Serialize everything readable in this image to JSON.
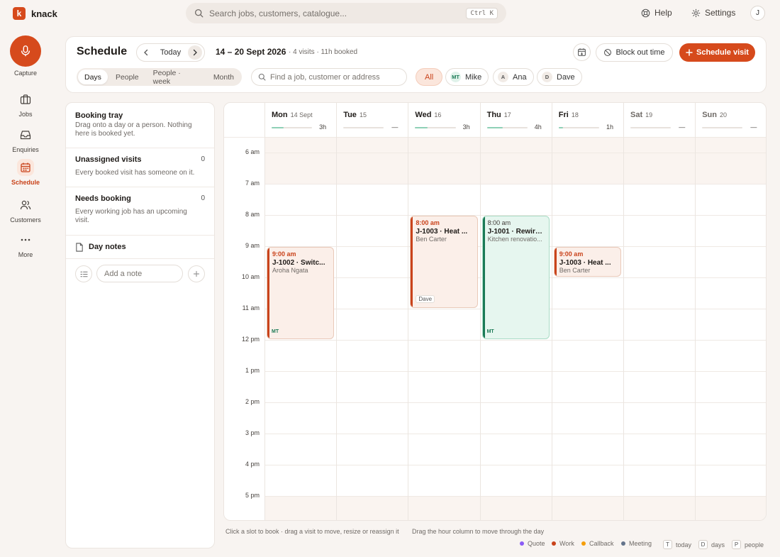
{
  "app": {
    "logo_letter": "k",
    "name": "knack"
  },
  "topbar": {
    "search_placeholder": "Search jobs, customers, catalogue...",
    "shortcut": "Ctrl K",
    "help": "Help",
    "settings": "Settings",
    "avatar": "J"
  },
  "sidebar": {
    "capture": "Capture",
    "items": [
      {
        "label": "Jobs",
        "icon": "briefcase-icon"
      },
      {
        "label": "Enquiries",
        "icon": "inbox-icon"
      },
      {
        "label": "Schedule",
        "icon": "calendar-icon",
        "active": true
      },
      {
        "label": "Customers",
        "icon": "users-icon"
      },
      {
        "label": "More",
        "icon": "dots-icon"
      }
    ]
  },
  "header": {
    "title": "Schedule",
    "today": "Today",
    "range": "14 – 20 Sept 2026",
    "meta": "· 4 visits · 11h booked",
    "block_out": "Block out time",
    "schedule_visit": "Schedule visit"
  },
  "views": [
    "Days",
    "People",
    "People · week",
    "Month"
  ],
  "find_placeholder": "Find a job, customer or address",
  "filters": {
    "all": "All",
    "people": [
      {
        "initials": "MT",
        "name": "Mike"
      },
      {
        "initials": "A",
        "name": "Ana"
      },
      {
        "initials": "D",
        "name": "Dave"
      }
    ]
  },
  "tray": {
    "booking_title": "Booking tray",
    "booking_desc": "Drag onto a day or a person. Nothing here is booked yet.",
    "unassigned_title": "Unassigned visits",
    "unassigned_count": "0",
    "unassigned_desc": "Every booked visit has someone on it.",
    "needs_title": "Needs booking",
    "needs_count": "0",
    "needs_desc": "Every working job has an upcoming visit.",
    "notes_title": "Day notes",
    "note_placeholder": "Add a note"
  },
  "calendar": {
    "days": [
      {
        "name": "Mon",
        "date": "14 Sept",
        "hours": "3h",
        "load": 0.3
      },
      {
        "name": "Tue",
        "date": "15",
        "hours": "—",
        "load": 0
      },
      {
        "name": "Wed",
        "date": "16",
        "hours": "3h",
        "load": 0.3
      },
      {
        "name": "Thu",
        "date": "17",
        "hours": "4h",
        "load": 0.4
      },
      {
        "name": "Fri",
        "date": "18",
        "hours": "1h",
        "load": 0.1
      },
      {
        "name": "Sat",
        "date": "19",
        "hours": "—",
        "load": 0
      },
      {
        "name": "Sun",
        "date": "20",
        "hours": "—",
        "load": 0
      }
    ],
    "hours": [
      "6 am",
      "7 am",
      "8 am",
      "9 am",
      "10 am",
      "11 am",
      "12 pm",
      "1 pm",
      "2 pm",
      "3 pm",
      "4 pm",
      "5 pm"
    ],
    "events": [
      {
        "day": 0,
        "start": 9,
        "end": 12,
        "time": "9:00 am",
        "title": "J-1002 · Switc...",
        "sub": "Aroha Ngata",
        "who": "MT",
        "style": "work"
      },
      {
        "day": 2,
        "start": 8,
        "end": 11,
        "time": "8:00 am",
        "title": "J-1003 · Heat ...",
        "sub": "Ben Carter",
        "who": "Dave",
        "style": "work"
      },
      {
        "day": 3,
        "start": 8,
        "end": 12,
        "time": "8:00 am",
        "title": "J-1001 · Rewire...",
        "sub": "Kitchen renovatio...",
        "who": "MT",
        "style": "green"
      },
      {
        "day": 4,
        "start": 9,
        "end": 10,
        "time": "9:00 am",
        "title": "J-1003 · Heat ...",
        "sub": "Ben Carter",
        "who": "",
        "style": "work"
      }
    ]
  },
  "footer": {
    "hint1": "Click a slot to book · drag a visit to move, resize or reassign it",
    "hint2": "Drag the hour column to move through the day",
    "legend": [
      {
        "label": "Quote",
        "color": "#8b5cf6"
      },
      {
        "label": "Work",
        "color": "#c9431b"
      },
      {
        "label": "Callback",
        "color": "#f59e0b"
      },
      {
        "label": "Meeting",
        "color": "#64748b"
      }
    ],
    "keys": [
      {
        "key": "T",
        "label": "today"
      },
      {
        "key": "D",
        "label": "days"
      },
      {
        "key": "P",
        "label": "people"
      }
    ]
  }
}
